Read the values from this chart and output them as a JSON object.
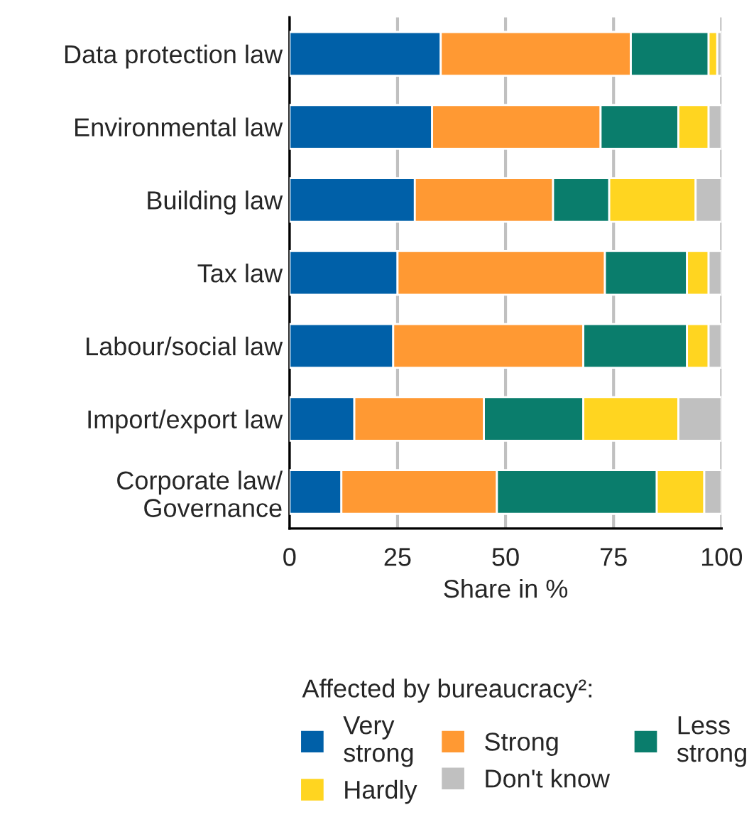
{
  "chart_data": {
    "type": "bar",
    "orientation": "horizontal",
    "stacked": true,
    "xlabel": "Share in %",
    "legend_title": "Affected by bureaucracy²:",
    "legend": "bottom",
    "grid": "x",
    "xlim": [
      0,
      100
    ],
    "xticks": [
      0,
      25,
      50,
      75,
      100
    ],
    "categories": [
      "Data protection law",
      "Environmental law",
      "Building law",
      "Tax law",
      "Labour/social law",
      "Import/export law",
      "Corporate law/\nGovernance"
    ],
    "series": [
      {
        "name": "Very\nstrong",
        "color": "#0060a8",
        "values": [
          35,
          33,
          29,
          25,
          24,
          15,
          12
        ]
      },
      {
        "name": "Strong",
        "color": "#ff9933",
        "values": [
          44,
          39,
          32,
          48,
          44,
          30,
          36
        ]
      },
      {
        "name": "Less\nstrong",
        "color": "#0a7d6c",
        "values": [
          18,
          18,
          13,
          19,
          24,
          23,
          37
        ]
      },
      {
        "name": "Hardly",
        "color": "#ffd520",
        "values": [
          2,
          7,
          20,
          5,
          5,
          22,
          11
        ]
      },
      {
        "name": "Don't know",
        "color": "#c0c0c0",
        "values": [
          1,
          3,
          6,
          3,
          3,
          10,
          4
        ]
      }
    ]
  }
}
